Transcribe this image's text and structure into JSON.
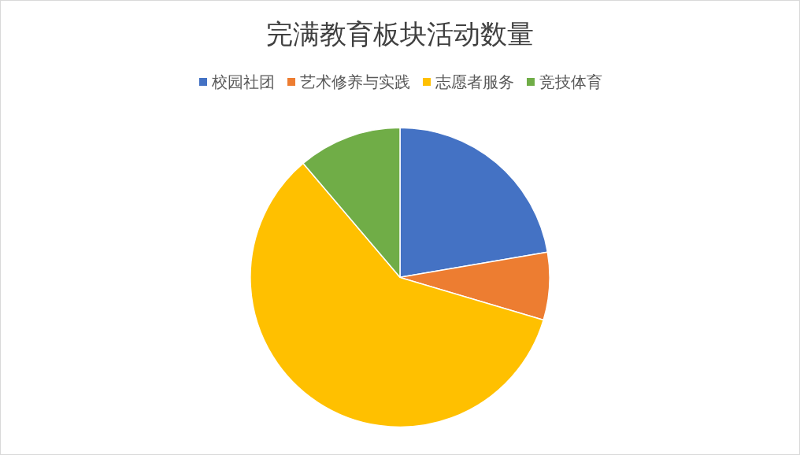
{
  "chart_data": {
    "type": "pie",
    "title": "完满教育板块活动数量",
    "categories": [
      "校园社团",
      "艺术修养与实践",
      "志愿者服务",
      "竞技体育"
    ],
    "values": [
      22.3,
      7.3,
      59.2,
      11.2
    ],
    "colors": [
      "#4472c4",
      "#ed7d31",
      "#ffc000",
      "#70ad47"
    ],
    "legend": "top"
  }
}
